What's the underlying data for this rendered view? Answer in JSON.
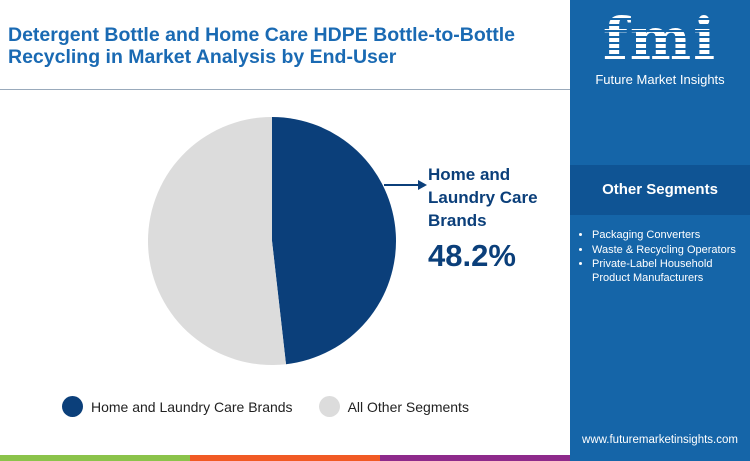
{
  "title": "Detergent Bottle and Home Care HDPE Bottle-to-Bottle Recycling in Market Analysis by End-User",
  "brand": {
    "logo_text": "fmi",
    "name": "Future Market Insights",
    "url": "www.futuremarketinsights.com"
  },
  "other_segments": {
    "heading": "Other Segments",
    "items": [
      "Packaging Converters",
      "Waste & Recycling Operators",
      "Private-Label Household Product Manufacturers"
    ]
  },
  "colors": {
    "primary": "#0b3f7a",
    "secondary": "#dcdcdc",
    "panel": "#1565a8",
    "strip": [
      "#8bc34a",
      "#f15a24",
      "#8e2a8b"
    ]
  },
  "chart_data": {
    "type": "pie",
    "categories": [
      "Home and Laundry Care Brands",
      "All Other Segments"
    ],
    "values": [
      48.2,
      51.8
    ],
    "callout": {
      "label": "Home and Laundry Care Brands",
      "label_lines": [
        "Home and",
        "Laundry Care",
        "Brands"
      ],
      "value": "48.2%"
    },
    "legend": [
      "Home and Laundry Care Brands",
      "All Other Segments"
    ],
    "legend_placement": "bottom"
  }
}
